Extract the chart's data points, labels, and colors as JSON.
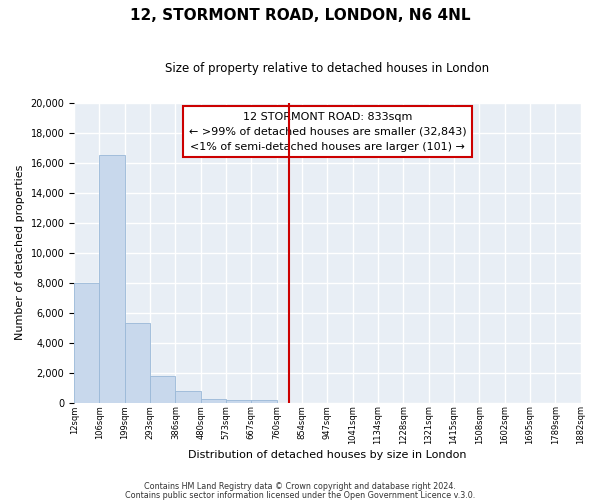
{
  "title": "12, STORMONT ROAD, LONDON, N6 4NL",
  "subtitle": "Size of property relative to detached houses in London",
  "xlabel": "Distribution of detached houses by size in London",
  "ylabel": "Number of detached properties",
  "bar_values": [
    8000,
    16500,
    5300,
    1800,
    750,
    250,
    200,
    150,
    0,
    0,
    0,
    0,
    0,
    0,
    0,
    0,
    0,
    0,
    0,
    0
  ],
  "bar_labels": [
    "12sqm",
    "106sqm",
    "199sqm",
    "293sqm",
    "386sqm",
    "480sqm",
    "573sqm",
    "667sqm",
    "760sqm",
    "854sqm",
    "947sqm",
    "1041sqm",
    "1134sqm",
    "1228sqm",
    "1321sqm",
    "1415sqm",
    "1508sqm",
    "1602sqm",
    "1695sqm",
    "1789sqm",
    "1882sqm"
  ],
  "bar_color": "#c8d8ec",
  "bar_edge_color": "#9ab8d8",
  "vline_x": 8.5,
  "vline_color": "#cc0000",
  "ylim": [
    0,
    20000
  ],
  "yticks": [
    0,
    2000,
    4000,
    6000,
    8000,
    10000,
    12000,
    14000,
    16000,
    18000,
    20000
  ],
  "annotation_title": "12 STORMONT ROAD: 833sqm",
  "annotation_line1": "← >99% of detached houses are smaller (32,843)",
  "annotation_line2": "<1% of semi-detached houses are larger (101) →",
  "footer_line1": "Contains HM Land Registry data © Crown copyright and database right 2024.",
  "footer_line2": "Contains public sector information licensed under the Open Government Licence v.3.0.",
  "background_color": "#ffffff",
  "plot_bg_color": "#e8eef5",
  "grid_color": "#ffffff"
}
